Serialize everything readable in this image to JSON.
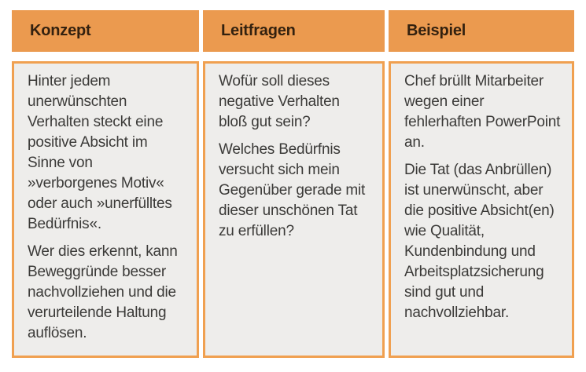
{
  "figure": {
    "title": "Konzept-Leitfragen-Beispiel-Tabelle",
    "columns": [
      {
        "header": "Konzept",
        "paragraphs": [
          "Hinter jedem unerwünschten Verhalten steckt eine positive Absicht im Sinne von »verborgenes Motiv« oder auch »unerfülltes Bedürfnis«.",
          "Wer dies erkennt, kann Beweggründe besser nachvollziehen und die verurteilende Haltung auflösen."
        ]
      },
      {
        "header": "Leitfragen",
        "paragraphs": [
          "Wofür soll dieses negative Verhalten bloß gut sein?",
          "Welches Bedürfnis versucht sich mein Gegenüber gerade mit dieser unschönen Tat zu erfüllen?"
        ]
      },
      {
        "header": "Beispiel",
        "paragraphs": [
          "Chef brüllt Mitarbeiter wegen einer fehlerhaften PowerPoint an.",
          "Die Tat (das Anbrüllen) ist unerwünscht, aber die positive Absicht(en) wie Qualität, Kundenbindung und Arbeitsplatzsicherung sind gut und nachvollziehbar."
        ]
      }
    ],
    "colors": {
      "header_bg": "#EB9A4F",
      "cell_border": "#F0A050",
      "cell_bg": "#EEEDEB",
      "header_text": "#33210F",
      "body_text": "#3B3A38",
      "page_bg": "#FFFFFF"
    }
  }
}
